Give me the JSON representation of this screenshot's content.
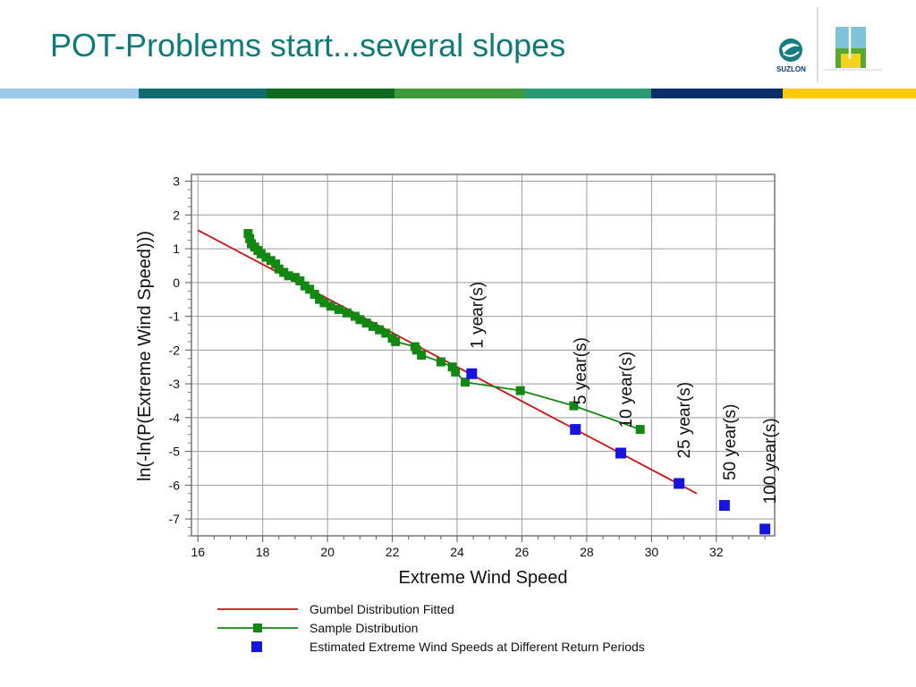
{
  "slide": {
    "title": "POT-Problems start...several slopes",
    "logo_text": "SUZLON",
    "title_color": "#0f7a7a",
    "bar_colors": [
      "#9dc8ee",
      "#0e6b6e",
      "#0b6a1e",
      "#3b9a3a",
      "#2a9a72",
      "#0a2e6a",
      "#ffcc00"
    ]
  },
  "chart_data": {
    "type": "scatter",
    "xlabel": "Extreme Wind Speed",
    "ylabel": "ln(-ln(P(Extreme Wind Speed)))",
    "xlim": [
      15.8,
      33.8
    ],
    "ylim": [
      -7.5,
      3.2
    ],
    "xticks": [
      16,
      18,
      20,
      22,
      24,
      26,
      28,
      30,
      32
    ],
    "yticks": [
      3,
      2,
      1,
      0,
      -1,
      -2,
      -3,
      -4,
      -5,
      -6,
      -7
    ],
    "grid": true,
    "legend_position": "bottom",
    "series": [
      {
        "name": "Gumbel Distribution Fitted",
        "kind": "line",
        "color": "#cc1111",
        "points": [
          [
            16.0,
            1.55
          ],
          [
            31.4,
            -6.25
          ]
        ]
      },
      {
        "name": "Sample Distribution",
        "kind": "line-markers",
        "color": "#118811",
        "points": [
          [
            17.55,
            1.45
          ],
          [
            17.6,
            1.3
          ],
          [
            17.65,
            1.15
          ],
          [
            17.75,
            1.05
          ],
          [
            17.85,
            0.95
          ],
          [
            17.95,
            0.85
          ],
          [
            18.1,
            0.75
          ],
          [
            18.25,
            0.65
          ],
          [
            18.4,
            0.55
          ],
          [
            18.5,
            0.4
          ],
          [
            18.65,
            0.3
          ],
          [
            18.8,
            0.2
          ],
          [
            19.0,
            0.15
          ],
          [
            19.15,
            0.05
          ],
          [
            19.3,
            -0.1
          ],
          [
            19.45,
            -0.2
          ],
          [
            19.6,
            -0.35
          ],
          [
            19.75,
            -0.5
          ],
          [
            19.9,
            -0.6
          ],
          [
            20.1,
            -0.7
          ],
          [
            20.35,
            -0.8
          ],
          [
            20.6,
            -0.9
          ],
          [
            20.85,
            -1.0
          ],
          [
            21.0,
            -1.1
          ],
          [
            21.2,
            -1.2
          ],
          [
            21.4,
            -1.3
          ],
          [
            21.6,
            -1.4
          ],
          [
            21.8,
            -1.5
          ],
          [
            22.0,
            -1.65
          ],
          [
            22.1,
            -1.75
          ],
          [
            22.7,
            -1.9
          ],
          [
            22.75,
            -2.0
          ],
          [
            22.9,
            -2.15
          ],
          [
            23.5,
            -2.35
          ],
          [
            23.85,
            -2.5
          ],
          [
            23.95,
            -2.65
          ],
          [
            24.25,
            -2.95
          ],
          [
            25.95,
            -3.2
          ],
          [
            27.6,
            -3.65
          ],
          [
            29.65,
            -4.35
          ]
        ]
      },
      {
        "name": "Estimated Extreme Wind Speeds at Different Return Periods",
        "kind": "markers",
        "color": "#1515dd",
        "points": [
          [
            24.45,
            -2.7,
            "1 year(s)"
          ],
          [
            27.65,
            -4.35,
            "5 year(s)"
          ],
          [
            29.05,
            -5.05,
            "10 year(s)"
          ],
          [
            30.85,
            -5.95,
            "25 year(s)"
          ],
          [
            32.25,
            -6.6,
            "50 year(s)"
          ],
          [
            33.5,
            -7.3,
            "100 year(s)"
          ]
        ]
      }
    ]
  }
}
